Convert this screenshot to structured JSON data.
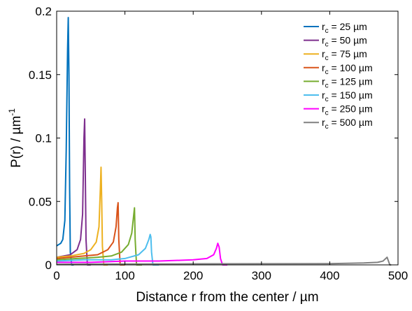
{
  "chart_data": {
    "type": "line",
    "title": "",
    "xlabel": "Distance r from the center / µm",
    "ylabel": "P(r) / µm",
    "ylabel_exponent": "-1",
    "xlim": [
      0,
      500
    ],
    "ylim": [
      0,
      0.2
    ],
    "x_ticks": [
      0,
      100,
      200,
      300,
      400,
      500
    ],
    "x_tick_labels": [
      "0",
      "100",
      "200",
      "300",
      "400",
      "500"
    ],
    "y_ticks": [
      0,
      0.05,
      0.1,
      0.15,
      0.2
    ],
    "y_tick_labels": [
      "0",
      "0.05",
      "0.1",
      "0.15",
      "0.2"
    ],
    "grid": false,
    "legend_position": "top-right",
    "series": [
      {
        "name": "25 µm",
        "label_prefix": "r",
        "label_sub": "c",
        "color": "#0072BD",
        "x": [
          0,
          3,
          6,
          9,
          12,
          14,
          16,
          17,
          18,
          19,
          20,
          22,
          24,
          25
        ],
        "y": [
          0.015,
          0.016,
          0.017,
          0.02,
          0.035,
          0.09,
          0.17,
          0.195,
          0.15,
          0.06,
          0.01,
          0.0,
          0.0,
          0.0
        ]
      },
      {
        "name": "50 µm",
        "label_prefix": "r",
        "label_sub": "c",
        "color": "#7E2F8E",
        "x": [
          0,
          10,
          20,
          30,
          35,
          38,
          40,
          41,
          42,
          43,
          45,
          48,
          50
        ],
        "y": [
          0.006,
          0.007,
          0.008,
          0.012,
          0.02,
          0.04,
          0.1,
          0.115,
          0.07,
          0.02,
          0.0,
          0.0,
          0.0
        ]
      },
      {
        "name": "75 µm",
        "label_prefix": "r",
        "label_sub": "c",
        "color": "#EDB120",
        "x": [
          0,
          20,
          40,
          50,
          58,
          62,
          64,
          65,
          66,
          67,
          69,
          72,
          75
        ],
        "y": [
          0.006,
          0.007,
          0.009,
          0.012,
          0.018,
          0.03,
          0.06,
          0.077,
          0.05,
          0.015,
          0.0,
          0.0,
          0.0
        ]
      },
      {
        "name": "100 µm",
        "label_prefix": "r",
        "label_sub": "c",
        "color": "#D95319",
        "x": [
          0,
          20,
          40,
          60,
          75,
          83,
          87,
          89,
          90,
          91,
          93,
          96,
          100
        ],
        "y": [
          0.005,
          0.006,
          0.007,
          0.008,
          0.012,
          0.018,
          0.03,
          0.045,
          0.049,
          0.02,
          0.0,
          0.0,
          0.0
        ]
      },
      {
        "name": "125 µm",
        "label_prefix": "r",
        "label_sub": "c",
        "color": "#77AC30",
        "x": [
          0,
          30,
          60,
          80,
          95,
          105,
          110,
          113,
          114,
          115,
          117,
          120,
          125
        ],
        "y": [
          0.004,
          0.005,
          0.006,
          0.007,
          0.01,
          0.016,
          0.025,
          0.04,
          0.045,
          0.02,
          0.0,
          0.0,
          0.0
        ]
      },
      {
        "name": "150 µm",
        "label_prefix": "r",
        "label_sub": "c",
        "color": "#4DBEEE",
        "x": [
          0,
          40,
          80,
          100,
          120,
          130,
          135,
          137,
          138,
          139,
          141,
          145,
          150
        ],
        "y": [
          0.003,
          0.004,
          0.004,
          0.005,
          0.008,
          0.013,
          0.02,
          0.024,
          0.022,
          0.01,
          0.0,
          0.0,
          0.0
        ]
      },
      {
        "name": "250 µm",
        "label_prefix": "r",
        "label_sub": "c",
        "color": "#FF00FF",
        "x": [
          0,
          50,
          100,
          150,
          200,
          220,
          230,
          234,
          236,
          238,
          240,
          243,
          246,
          250
        ],
        "y": [
          0.002,
          0.002,
          0.003,
          0.003,
          0.004,
          0.005,
          0.008,
          0.013,
          0.017,
          0.014,
          0.005,
          0.0,
          0.0,
          0.0
        ]
      },
      {
        "name": "500 µm",
        "label_prefix": "r",
        "label_sub": "c",
        "color": "#808080",
        "x": [
          0,
          100,
          200,
          300,
          400,
          450,
          470,
          478,
          482,
          484,
          486,
          488,
          490
        ],
        "y": [
          0.0005,
          0.0007,
          0.0008,
          0.0009,
          0.001,
          0.0015,
          0.002,
          0.003,
          0.005,
          0.006,
          0.003,
          0.0,
          0.0
        ]
      }
    ]
  }
}
